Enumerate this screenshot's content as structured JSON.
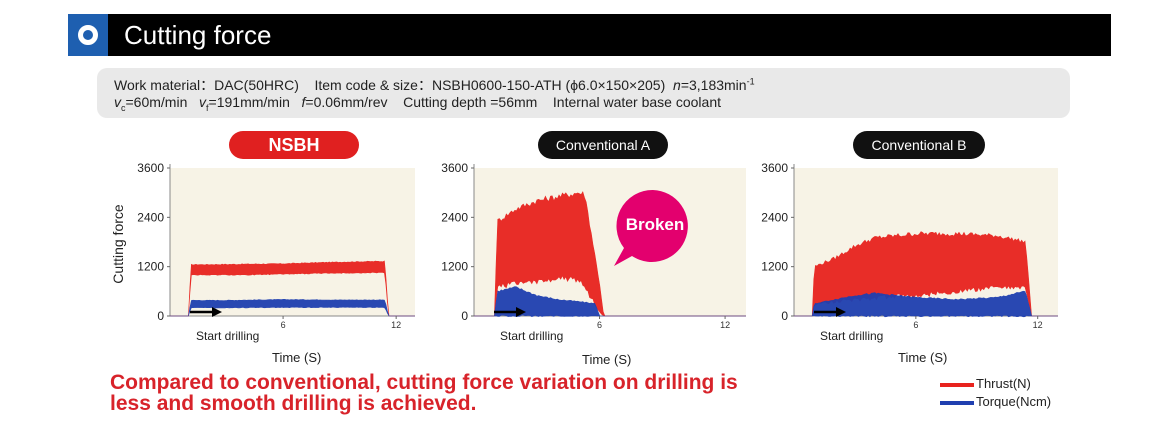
{
  "header": {
    "title": "Cutting force"
  },
  "conditions": {
    "line1": {
      "work_label": "Work material：",
      "work_value": "DAC(50HRC)",
      "item_label": "Item code & size：",
      "item_value": "NSBH0600-150-ATH",
      "size_value": "(ϕ6.0×150×205)",
      "n_label": "n",
      "n_value": "=3,183min",
      "n_unit_sup": "-1"
    },
    "line2": {
      "vc_label": "v",
      "vc_sub": "c",
      "vc_value": "=60m/min",
      "vf_label": "v",
      "vf_sub": "f",
      "vf_value": "=191mm/min",
      "f_label": "f",
      "f_value": "=0.06mm/rev",
      "depth": "Cutting depth =56mm",
      "coolant": "Internal water base coolant"
    }
  },
  "panels": [
    {
      "label": "NSBH"
    },
    {
      "label": "Conventional A"
    },
    {
      "label": "Conventional B"
    }
  ],
  "annotation": {
    "broken": "Broken"
  },
  "conclusion": {
    "line1": "Compared to conventional, cutting force variation on drilling is",
    "line2": "less and smooth drilling is achieved."
  },
  "colors": {
    "thrust": "#e8231e",
    "torque": "#1f3fb0",
    "title_bar": "#000000",
    "badge": "#1e5fb0",
    "broken": "#e3006e"
  },
  "chart_data": [
    {
      "type": "area",
      "panel": "NSBH",
      "ylabel": "Cutting force",
      "xlabel": "Time (S)",
      "ylim": [
        0,
        3600
      ],
      "xlim": [
        0,
        13
      ],
      "yticks": [
        "0",
        "1200",
        "2400",
        "3600"
      ],
      "xticks": [
        {
          "v": 6,
          "label": "6"
        },
        {
          "v": 12,
          "label": "12"
        }
      ],
      "start_label": "Start drilling",
      "series": [
        {
          "name": "Thrust(N)",
          "x": [
            0,
            1.0,
            1.1,
            2,
            4,
            6,
            8,
            10,
            11.4,
            11.6,
            13
          ],
          "low": [
            0,
            0,
            1000,
            1000,
            1000,
            1020,
            1040,
            1050,
            1060,
            0,
            0
          ],
          "high": [
            0,
            0,
            1250,
            1250,
            1260,
            1270,
            1300,
            1320,
            1330,
            0,
            0
          ]
        },
        {
          "name": "Torque(Ncm)",
          "x": [
            0,
            1.0,
            1.1,
            3,
            6,
            9,
            11.4,
            11.6,
            13
          ],
          "low": [
            0,
            0,
            200,
            200,
            210,
            210,
            210,
            0,
            0
          ],
          "high": [
            0,
            0,
            380,
            380,
            400,
            390,
            390,
            0,
            0
          ]
        }
      ]
    },
    {
      "type": "area",
      "panel": "Conventional A",
      "xlabel": "Time (S)",
      "ylim": [
        0,
        3600
      ],
      "xlim": [
        0,
        13
      ],
      "yticks": [
        "0",
        "1200",
        "2400",
        "3600"
      ],
      "xticks": [
        {
          "v": 6,
          "label": "6"
        },
        {
          "v": 12,
          "label": "12"
        }
      ],
      "start_label": "Start drilling",
      "series": [
        {
          "name": "Thrust(N)",
          "x": [
            0,
            1.0,
            1.1,
            2,
            3,
            4,
            5,
            5.3,
            6,
            6.2,
            13
          ],
          "low": [
            0,
            0,
            700,
            800,
            850,
            900,
            900,
            700,
            100,
            0,
            0
          ],
          "high": [
            0,
            0,
            2300,
            2600,
            2800,
            2900,
            3000,
            2950,
            800,
            0,
            0
          ]
        },
        {
          "name": "Torque(Ncm)",
          "x": [
            0,
            1.0,
            1.1,
            2,
            3,
            4,
            5,
            5.8,
            6.0,
            13
          ],
          "low": [
            0,
            0,
            0,
            0,
            0,
            0,
            0,
            0,
            0,
            0
          ],
          "high": [
            0,
            0,
            600,
            700,
            500,
            400,
            350,
            300,
            0,
            0
          ]
        }
      ]
    },
    {
      "type": "area",
      "panel": "Conventional B",
      "xlabel": "Time (S)",
      "ylim": [
        0,
        3600
      ],
      "xlim": [
        0,
        13
      ],
      "yticks": [
        "0",
        "1200",
        "2400",
        "3600"
      ],
      "xticks": [
        {
          "v": 6,
          "label": "6"
        },
        {
          "v": 12,
          "label": "12"
        }
      ],
      "start_label": "Start drilling",
      "series": [
        {
          "name": "Thrust(N)",
          "x": [
            0,
            0.9,
            1.0,
            2,
            3,
            4,
            6,
            8,
            10,
            11.4,
            11.7,
            13
          ],
          "low": [
            0,
            0,
            300,
            350,
            400,
            450,
            500,
            600,
            700,
            700,
            0,
            0
          ],
          "high": [
            0,
            0,
            1200,
            1400,
            1700,
            1900,
            2000,
            2000,
            1950,
            1800,
            0,
            0
          ]
        },
        {
          "name": "Torque(Ncm)",
          "x": [
            0,
            0.9,
            1.0,
            2,
            3,
            4,
            6,
            8,
            10,
            11.4,
            11.7,
            13
          ],
          "low": [
            0,
            0,
            0,
            0,
            0,
            0,
            0,
            0,
            0,
            0,
            0,
            0
          ],
          "high": [
            0,
            0,
            300,
            400,
            500,
            550,
            450,
            400,
            450,
            600,
            0,
            0
          ]
        }
      ]
    }
  ]
}
